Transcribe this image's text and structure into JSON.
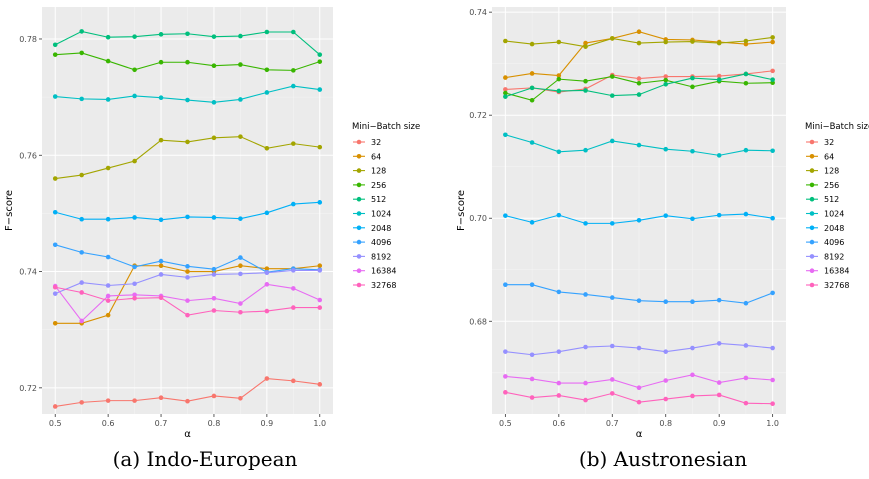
{
  "chart_data": [
    {
      "type": "line",
      "caption": "(a) Indo-European",
      "xlabel": "α",
      "ylabel": "F−score",
      "legend_title": "Mini−Batch size",
      "legend_position": "right",
      "grid": true,
      "xlim": [
        0.475,
        1.025
      ],
      "ylim": [
        0.7155,
        0.7855
      ],
      "x_ticks": [
        "0.5",
        "0.6",
        "0.7",
        "0.8",
        "0.9",
        "1.0"
      ],
      "y_ticks": [
        "0.72",
        "0.74",
        "0.76",
        "0.78"
      ],
      "x": [
        0.5,
        0.55,
        0.6,
        0.65,
        0.7,
        0.75,
        0.8,
        0.85,
        0.9,
        0.95,
        1.0
      ],
      "series": [
        {
          "name": "32",
          "color": "#F8766D",
          "values": [
            0.7168,
            0.7175,
            0.7178,
            0.7178,
            0.7183,
            0.7177,
            0.7186,
            0.7182,
            0.7216,
            0.7212,
            0.7206
          ]
        },
        {
          "name": "64",
          "color": "#D89000",
          "values": [
            0.7311,
            0.7311,
            0.7325,
            0.741,
            0.741,
            0.74,
            0.74,
            0.741,
            0.7405,
            0.7405,
            0.741
          ]
        },
        {
          "name": "128",
          "color": "#A3A500",
          "values": [
            0.756,
            0.7566,
            0.7578,
            0.759,
            0.7626,
            0.7623,
            0.763,
            0.7632,
            0.7612,
            0.762,
            0.7614
          ]
        },
        {
          "name": "256",
          "color": "#39B600",
          "values": [
            0.7773,
            0.7776,
            0.7762,
            0.7747,
            0.776,
            0.776,
            0.7754,
            0.7756,
            0.7747,
            0.7746,
            0.7761
          ]
        },
        {
          "name": "512",
          "color": "#00BF7D",
          "values": [
            0.779,
            0.7813,
            0.7803,
            0.7804,
            0.7808,
            0.7809,
            0.7804,
            0.7805,
            0.7812,
            0.7812,
            0.7773
          ]
        },
        {
          "name": "1024",
          "color": "#00BFC4",
          "values": [
            0.7701,
            0.7697,
            0.7696,
            0.7702,
            0.7699,
            0.7695,
            0.7691,
            0.7696,
            0.7708,
            0.7719,
            0.7713
          ]
        },
        {
          "name": "2048",
          "color": "#00B0F6",
          "values": [
            0.7502,
            0.749,
            0.749,
            0.7493,
            0.7489,
            0.7494,
            0.7493,
            0.7491,
            0.7501,
            0.7516,
            0.7519
          ]
        },
        {
          "name": "4096",
          "color": "#35A2FF",
          "values": [
            0.7446,
            0.7433,
            0.7425,
            0.7408,
            0.7418,
            0.7409,
            0.7404,
            0.7424,
            0.7399,
            0.7405,
            0.7403
          ]
        },
        {
          "name": "8192",
          "color": "#9590FF",
          "values": [
            0.7362,
            0.7381,
            0.7376,
            0.7379,
            0.7395,
            0.739,
            0.7395,
            0.7396,
            0.7398,
            0.7402,
            0.7402
          ]
        },
        {
          "name": "16384",
          "color": "#E76BF3",
          "values": [
            0.7375,
            0.7315,
            0.7358,
            0.736,
            0.7358,
            0.735,
            0.7354,
            0.7345,
            0.7378,
            0.7371,
            0.7351
          ]
        },
        {
          "name": "32768",
          "color": "#FF62BC",
          "values": [
            0.7373,
            0.7364,
            0.735,
            0.7354,
            0.7355,
            0.7325,
            0.7333,
            0.733,
            0.7332,
            0.7338,
            0.7338
          ]
        }
      ]
    },
    {
      "type": "line",
      "caption": "(b) Austronesian",
      "xlabel": "α",
      "ylabel": "F−score",
      "legend_title": "Mini−Batch size",
      "legend_position": "right",
      "grid": true,
      "xlim": [
        0.475,
        1.025
      ],
      "ylim": [
        0.662,
        0.741
      ],
      "x_ticks": [
        "0.5",
        "0.6",
        "0.7",
        "0.8",
        "0.9",
        "1.0"
      ],
      "y_ticks": [
        "0.68",
        "0.70",
        "0.72",
        "0.74"
      ],
      "x": [
        0.5,
        0.55,
        0.6,
        0.65,
        0.7,
        0.75,
        0.8,
        0.85,
        0.9,
        0.95,
        1.0
      ],
      "series": [
        {
          "name": "32",
          "color": "#F8766D",
          "values": [
            0.725,
            0.7253,
            0.7245,
            0.7251,
            0.7278,
            0.7271,
            0.7275,
            0.7275,
            0.7276,
            0.728,
            0.7286
          ]
        },
        {
          "name": "64",
          "color": "#D89000",
          "values": [
            0.7273,
            0.7281,
            0.7277,
            0.734,
            0.7349,
            0.7362,
            0.7347,
            0.7346,
            0.7342,
            0.7338,
            0.7342
          ]
        },
        {
          "name": "128",
          "color": "#A3A500",
          "values": [
            0.7344,
            0.7338,
            0.7342,
            0.7333,
            0.7349,
            0.734,
            0.7342,
            0.7343,
            0.734,
            0.7344,
            0.7351
          ]
        },
        {
          "name": "256",
          "color": "#39B600",
          "values": [
            0.7243,
            0.7229,
            0.727,
            0.7266,
            0.7275,
            0.7262,
            0.7268,
            0.7255,
            0.7266,
            0.7262,
            0.7263
          ]
        },
        {
          "name": "512",
          "color": "#00BF7D",
          "values": [
            0.7236,
            0.7253,
            0.7247,
            0.7248,
            0.7238,
            0.724,
            0.726,
            0.7272,
            0.7269,
            0.728,
            0.7269
          ]
        },
        {
          "name": "1024",
          "color": "#00BFC4",
          "values": [
            0.7162,
            0.7147,
            0.7129,
            0.7132,
            0.715,
            0.7142,
            0.7134,
            0.713,
            0.7122,
            0.7132,
            0.7131
          ]
        },
        {
          "name": "2048",
          "color": "#00B0F6",
          "values": [
            0.7005,
            0.6992,
            0.7006,
            0.699,
            0.699,
            0.6996,
            0.7005,
            0.6999,
            0.7006,
            0.7008,
            0.7
          ]
        },
        {
          "name": "4096",
          "color": "#35A2FF",
          "values": [
            0.6871,
            0.6871,
            0.6857,
            0.6852,
            0.6846,
            0.684,
            0.6838,
            0.6838,
            0.6841,
            0.6835,
            0.6855
          ]
        },
        {
          "name": "8192",
          "color": "#9590FF",
          "values": [
            0.6741,
            0.6735,
            0.6741,
            0.675,
            0.6752,
            0.6748,
            0.6741,
            0.6748,
            0.6757,
            0.6753,
            0.6748
          ]
        },
        {
          "name": "16384",
          "color": "#E76BF3",
          "values": [
            0.6693,
            0.6688,
            0.668,
            0.668,
            0.6687,
            0.6671,
            0.6685,
            0.6696,
            0.6681,
            0.669,
            0.6686
          ]
        },
        {
          "name": "32768",
          "color": "#FF62BC",
          "values": [
            0.6662,
            0.6652,
            0.6656,
            0.6647,
            0.666,
            0.6643,
            0.6649,
            0.6655,
            0.6657,
            0.6641,
            0.664
          ]
        }
      ]
    }
  ]
}
